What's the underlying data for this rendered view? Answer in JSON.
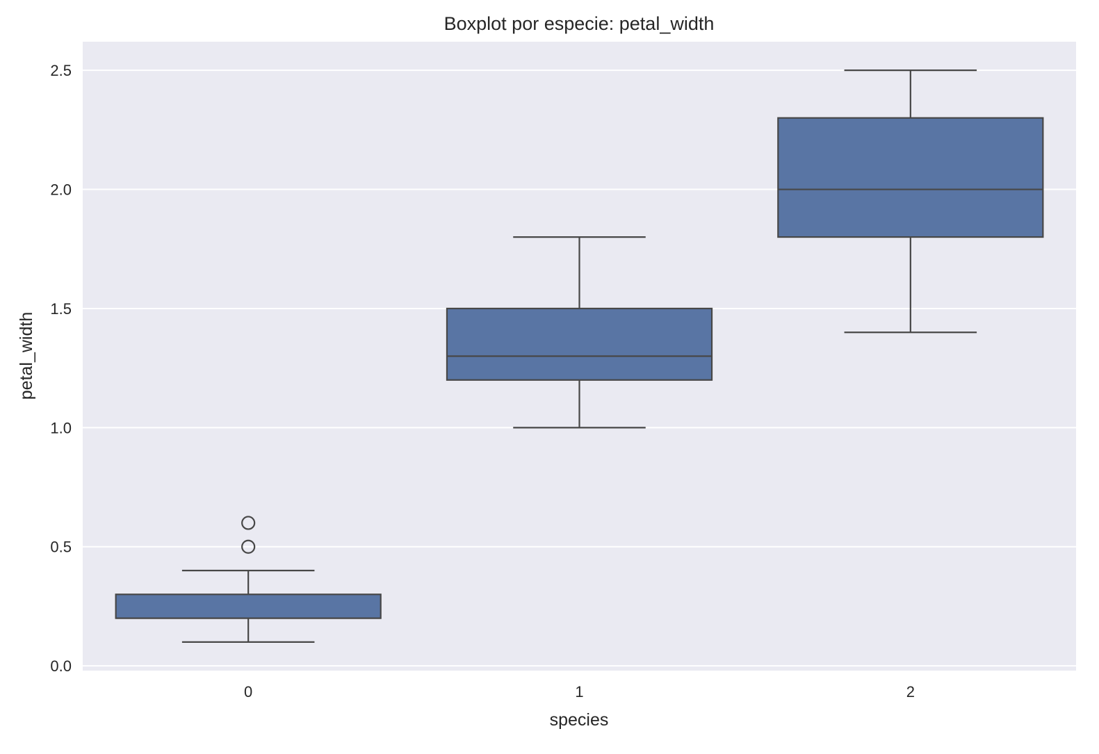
{
  "chart_data": {
    "type": "box",
    "title": "Boxplot por especie: petal_width",
    "xlabel": "species",
    "ylabel": "petal_width",
    "categories": [
      "0",
      "1",
      "2"
    ],
    "boxes": [
      {
        "category": "0",
        "whisker_low": 0.1,
        "q1": 0.2,
        "median": 0.2,
        "q3": 0.3,
        "whisker_high": 0.4,
        "outliers": [
          0.5,
          0.6
        ]
      },
      {
        "category": "1",
        "whisker_low": 1.0,
        "q1": 1.2,
        "median": 1.3,
        "q3": 1.5,
        "whisker_high": 1.8,
        "outliers": []
      },
      {
        "category": "2",
        "whisker_low": 1.4,
        "q1": 1.8,
        "median": 2.0,
        "q3": 2.3,
        "whisker_high": 2.5,
        "outliers": []
      }
    ],
    "yticks": [
      0.0,
      0.5,
      1.0,
      1.5,
      2.0,
      2.5
    ],
    "ytick_labels": [
      "0.0",
      "0.5",
      "1.0",
      "1.5",
      "2.0",
      "2.5"
    ],
    "ylim": [
      -0.02,
      2.62
    ],
    "xlim": [
      -0.5,
      2.5
    ],
    "grid": true,
    "colors": {
      "box": "#5975a4",
      "line": "#474747",
      "background": "#eaeaf2",
      "grid": "#ffffff"
    }
  }
}
